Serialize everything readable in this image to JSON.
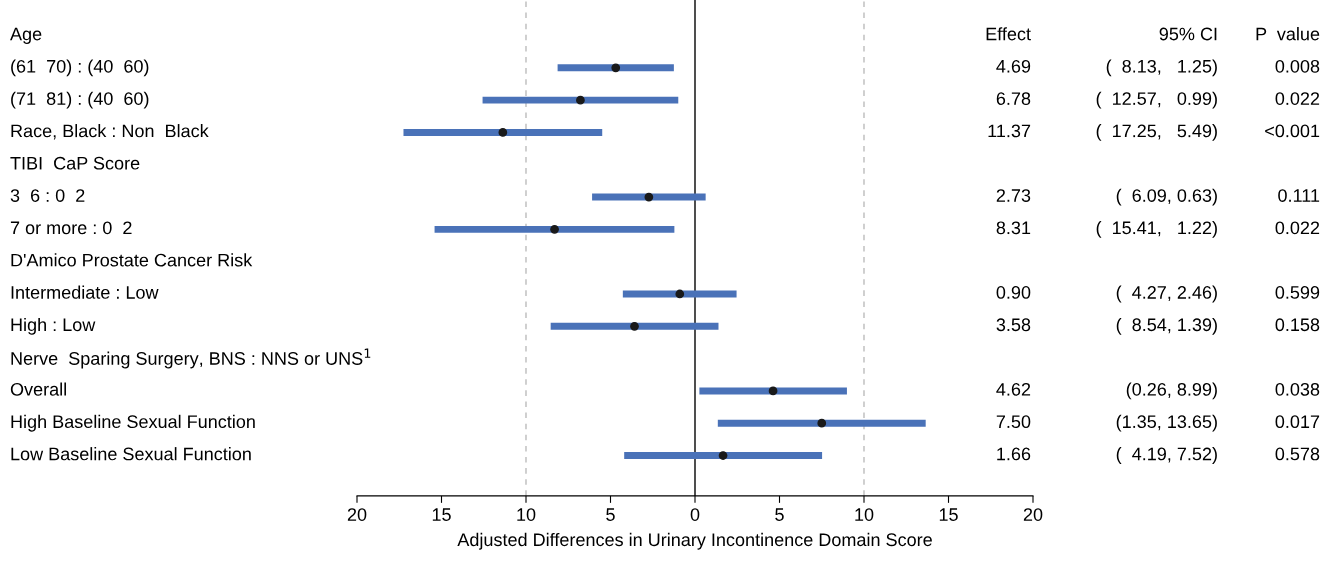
{
  "chart_data": {
    "type": "scatter",
    "orientation": "horizontal",
    "marker": "circle",
    "color": "#1a1a1a",
    "categories": [
      "Age",
      "(61  70) : (40  60)",
      "(71  81) : (40  60)",
      "Race, Black : Non  Black",
      "TIBI  CaP Score",
      "3  6 : 0  2",
      "7 or more : 0  2",
      "D'Amico Prostate Cancer Risk",
      "Intermediate : Low",
      "High : Low",
      "Nerve  Sparing Surgery, BNS : NNS or UNS$^{1}$",
      "Overall",
      "High Baseline Sexual Function",
      "Low Baseline Sexual Function"
    ],
    "values": [
      null,
      -4.69,
      -6.78,
      -11.37,
      null,
      -2.73,
      -8.31,
      null,
      -0.9,
      -3.58,
      null,
      4.62,
      7.5,
      1.66
    ],
    "errors": [
      null,
      [
        -8.13,
        -1.25
      ],
      [
        -12.57,
        -0.99
      ],
      [
        -17.25,
        -5.49
      ],
      null,
      [
        -6.09,
        0.63
      ],
      [
        -15.41,
        -1.22
      ],
      null,
      [
        -4.27,
        2.46
      ],
      [
        -8.54,
        1.39
      ],
      null,
      [
        0.26,
        8.99
      ],
      [
        1.35,
        13.65
      ],
      [
        -4.19,
        7.52
      ]
    ],
    "annotations": [
      "Effect",
      "95% CI",
      "P  value",
      "4.69",
      "(  8.13,   1.25)",
      "0.008",
      "6.78",
      "(  12.57,   0.99)",
      "0.022",
      "11.37",
      "(  17.25,   5.49)",
      "<0.001",
      "2.73",
      "(  6.09, 0.63)",
      "0.111",
      "8.31",
      "(  15.41,   1.22)",
      "0.022",
      "0.90",
      "(  4.27, 2.46)",
      "0.599",
      "3.58",
      "(  8.54, 1.39)",
      "0.158",
      "4.62",
      "(0.26, 8.99)",
      "0.038",
      "7.50",
      "(1.35, 13.65)",
      "0.017",
      "1.66",
      "(  4.19, 7.52)",
      "0.578"
    ],
    "xlabel": "Adjusted Differences in Urinary Incontinence Domain Score",
    "xlim": [
      -20,
      20
    ],
    "xticks": [
      {
        "value": -20,
        "label": "20"
      },
      {
        "value": -15,
        "label": "15"
      },
      {
        "value": -10,
        "label": "10"
      },
      {
        "value": -5,
        "label": "5"
      },
      0,
      5,
      10,
      15,
      20
    ],
    "ref_lines": [
      {
        "axis": "x",
        "value": 0,
        "color": "#000000",
        "line_style": "solid"
      },
      {
        "axis": "x",
        "value": -10,
        "color": "#bbbbbb",
        "line_style": "dashed"
      },
      {
        "axis": "x",
        "value": 10,
        "color": "#bbbbbb",
        "line_style": "dashed"
      }
    ],
    "tick_labels": "x"
  }
}
